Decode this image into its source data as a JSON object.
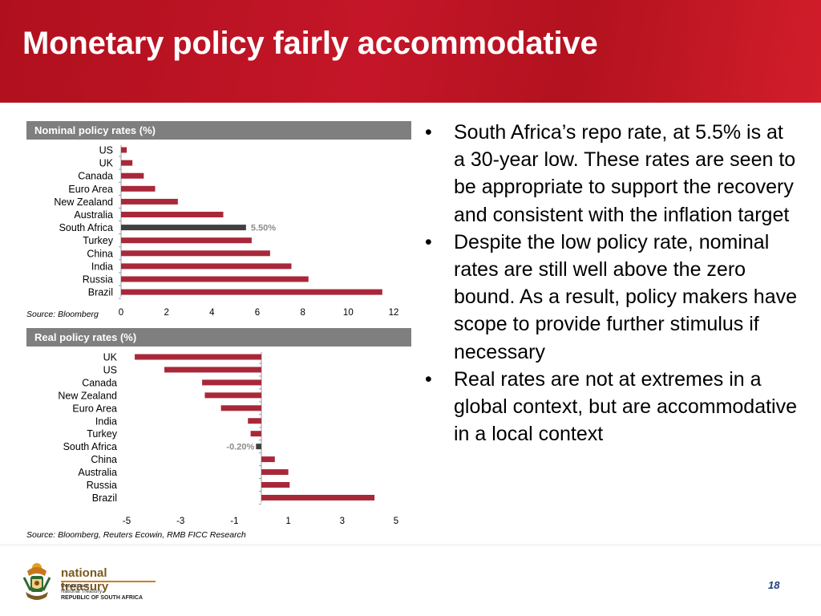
{
  "slide": {
    "title": "Monetary policy fairly accommodative",
    "page_number": "18"
  },
  "chart_data": [
    {
      "type": "bar",
      "orientation": "horizontal",
      "title": "Nominal policy rates (%)",
      "source": "Source: Bloomberg",
      "categories": [
        "US",
        "UK",
        "Canada",
        "Euro Area",
        "New Zealand",
        "Australia",
        "South Africa",
        "Turkey",
        "China",
        "India",
        "Russia",
        "Brazil"
      ],
      "values": [
        0.25,
        0.5,
        1.0,
        1.5,
        2.5,
        4.5,
        5.5,
        5.75,
        6.56,
        7.5,
        8.25,
        11.5
      ],
      "highlight": {
        "category": "South Africa",
        "label": "5.50%"
      },
      "xlim": [
        0,
        12
      ],
      "x_ticks": [
        "0",
        "2",
        "4",
        "6",
        "8",
        "10",
        "12"
      ],
      "colors": {
        "bar": "#a8283a",
        "highlight": "#404040"
      }
    },
    {
      "type": "bar",
      "orientation": "horizontal",
      "title": "Real policy rates (%)",
      "source": "Source: Bloomberg, Reuters Ecowin, RMB FICC Research",
      "categories": [
        "UK",
        "US",
        "Canada",
        "New Zealand",
        "Euro Area",
        "India",
        "Turkey",
        "South Africa",
        "China",
        "Australia",
        "Russia",
        "Brazil"
      ],
      "values": [
        -4.7,
        -3.6,
        -2.2,
        -2.1,
        -1.5,
        -0.5,
        -0.4,
        -0.2,
        0.5,
        1.0,
        1.05,
        4.2
      ],
      "highlight": {
        "category": "South Africa",
        "label": "-0.20%"
      },
      "xlim": [
        -5,
        5
      ],
      "x_ticks": [
        "-5",
        "-3",
        "-1",
        "1",
        "3",
        "5"
      ],
      "colors": {
        "bar": "#a8283a",
        "highlight": "#404040"
      }
    }
  ],
  "bullets": [
    "South Africa’s repo rate, at 5.5% is at a 30-year low. These rates are seen to be appropriate to support the recovery and consistent with the inflation target",
    "Despite the low policy rate, nominal rates are still well above the zero bound. As a result, policy makers have scope to provide further stimulus if necessary",
    "Real rates are not at extremes in a global context, but are accommodative in a local context"
  ],
  "bullet_symbol": "•",
  "logo": {
    "name": "national treasury",
    "dept_lines": [
      "Department:",
      "National Treasury"
    ],
    "country": "REPUBLIC OF SOUTH AFRICA"
  },
  "colors": {
    "header_red": "#c41628",
    "panel_grey": "#7f7f7f",
    "accent_bar": "#a8283a"
  }
}
